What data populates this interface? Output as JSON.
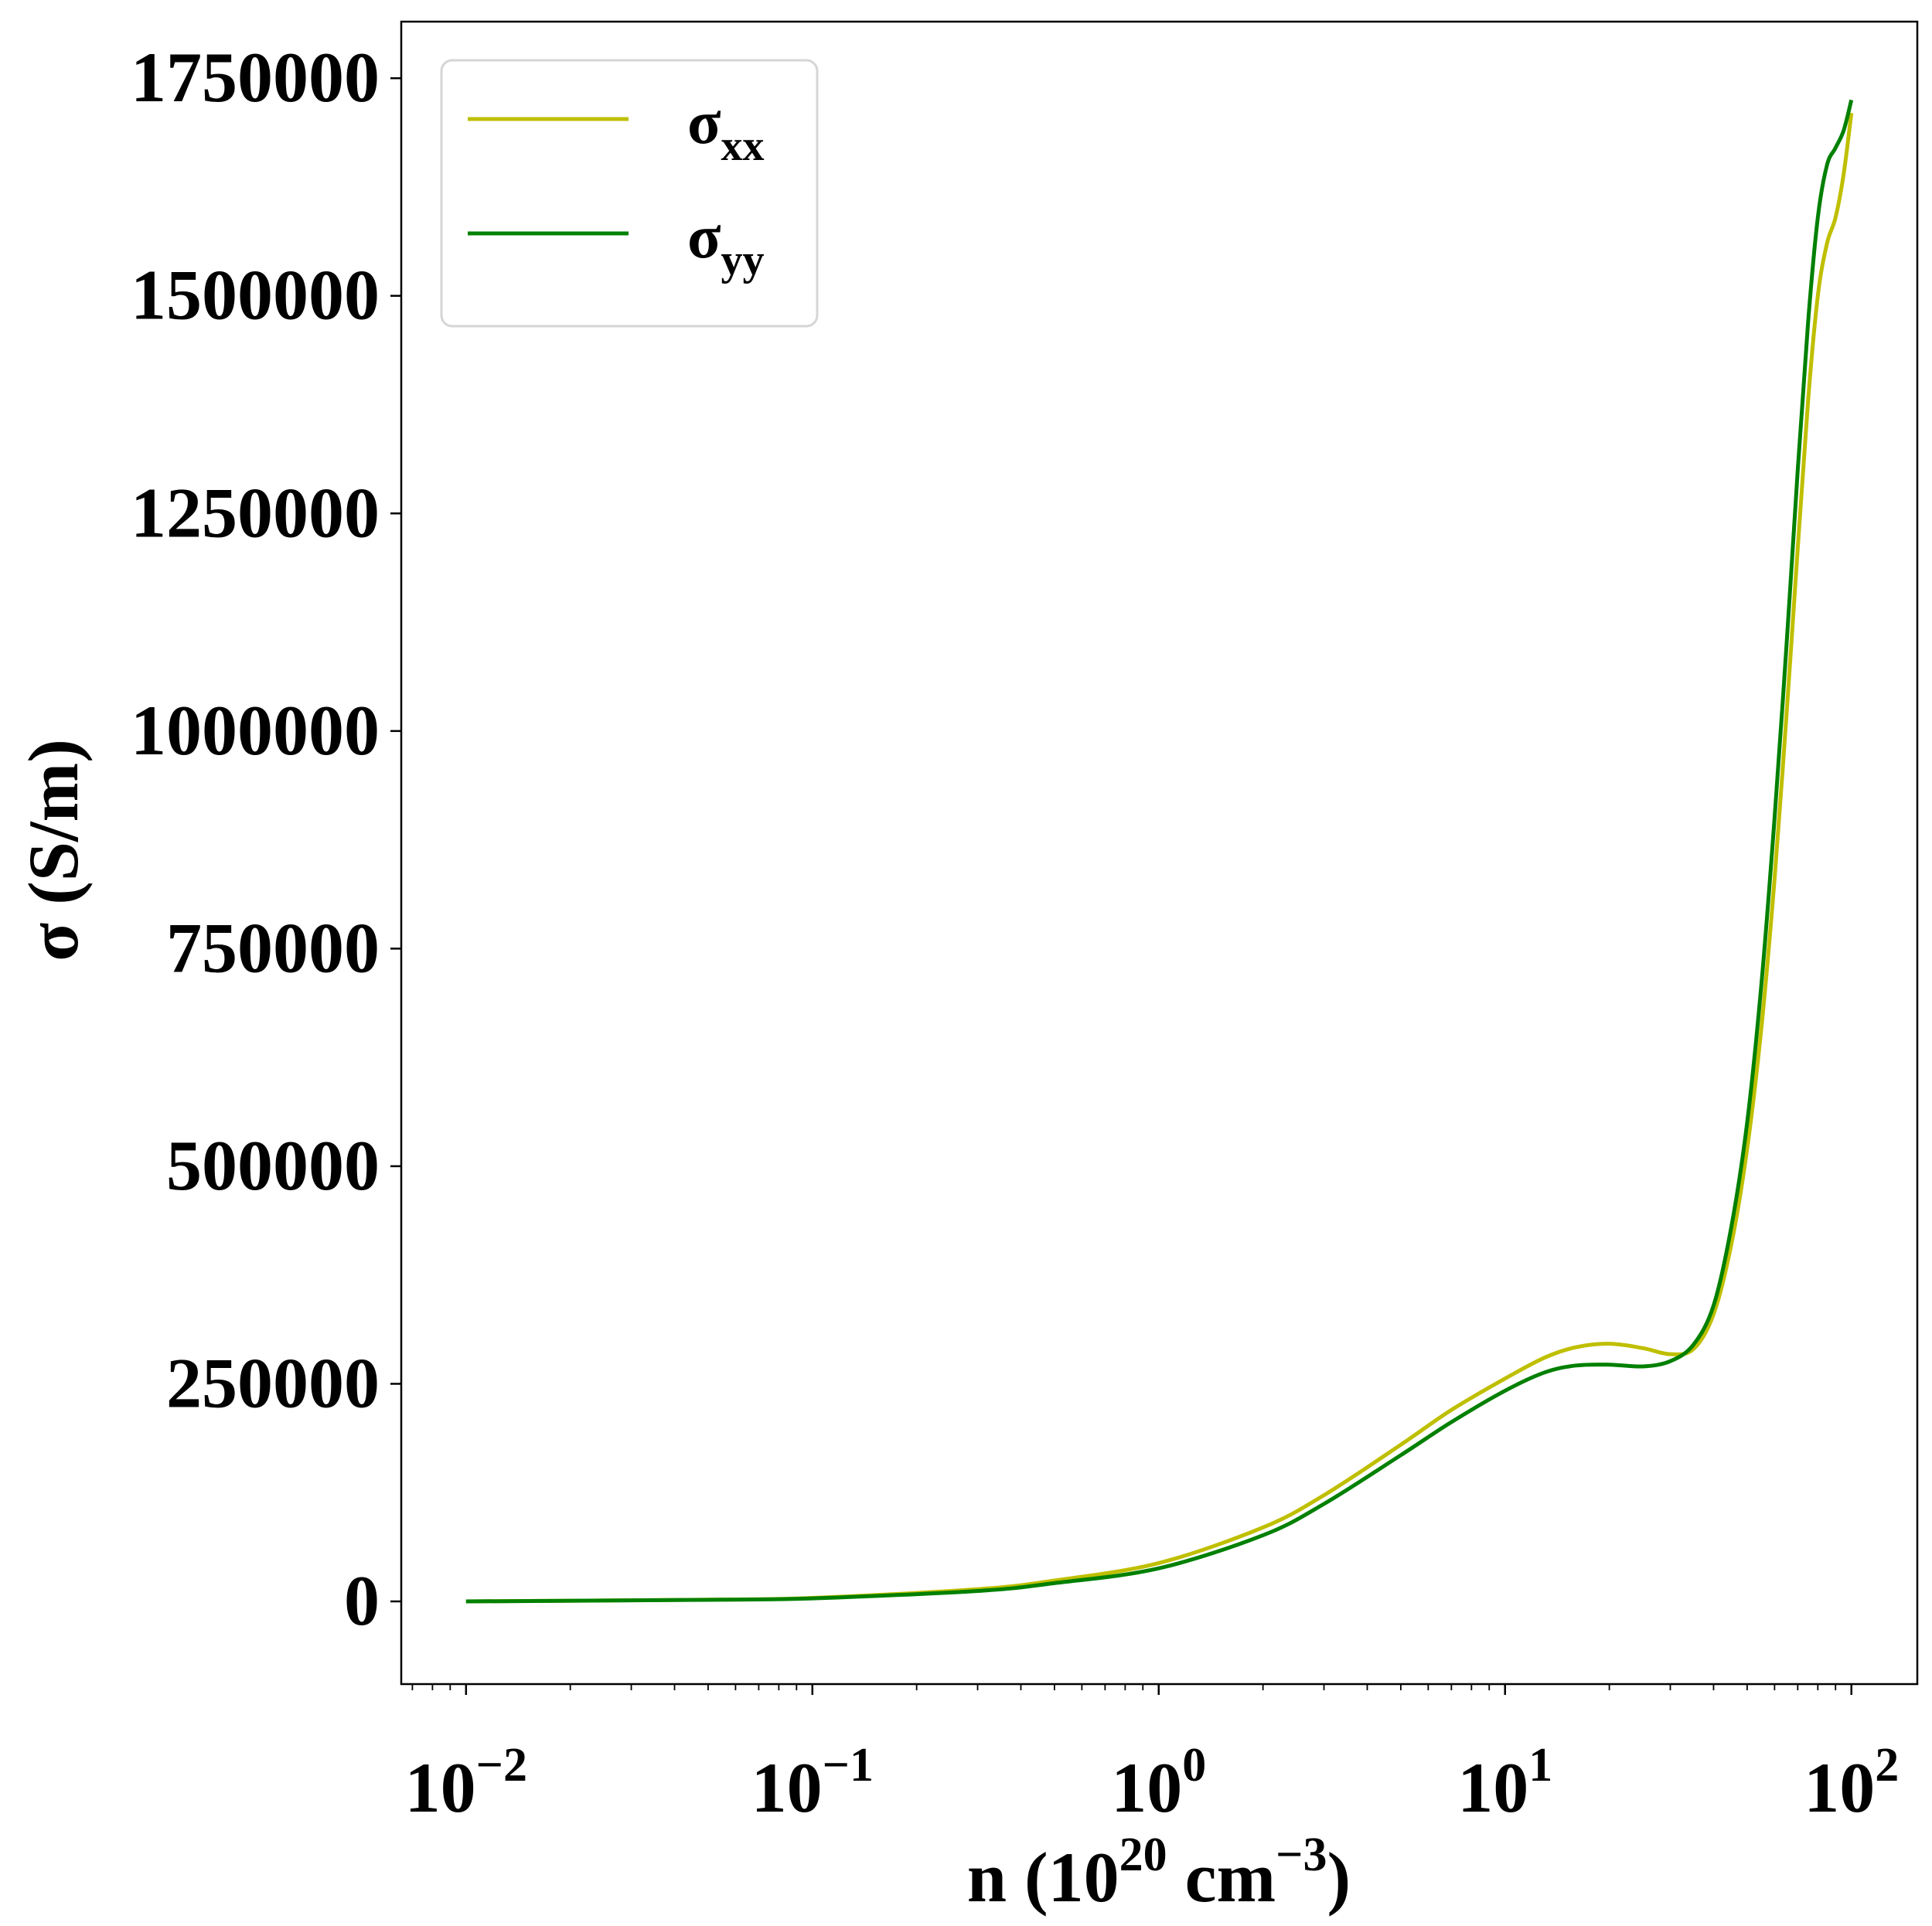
{
  "chart_data": {
    "type": "line",
    "xscale": "log",
    "xlim": [
      0.0065,
      155
    ],
    "ylim": [
      -95000,
      1815000
    ],
    "xlabel": {
      "base": "n (10",
      "sup1": "20",
      "mid": " cm",
      "sup2": "−3",
      "end": ")"
    },
    "ylabel": "σ (S/m)",
    "xticks": [
      {
        "value": 0.01,
        "base": "10",
        "exp": "−2"
      },
      {
        "value": 0.1,
        "base": "10",
        "exp": "−1"
      },
      {
        "value": 1,
        "base": "10",
        "exp": "0"
      },
      {
        "value": 10,
        "base": "10",
        "exp": "1"
      },
      {
        "value": 100,
        "base": "10",
        "exp": "2"
      }
    ],
    "yticks": [
      {
        "value": 0,
        "label": "0"
      },
      {
        "value": 250000,
        "label": "250000"
      },
      {
        "value": 500000,
        "label": "500000"
      },
      {
        "value": 750000,
        "label": "750000"
      },
      {
        "value": 1000000,
        "label": "1000000"
      },
      {
        "value": 1250000,
        "label": "1250000"
      },
      {
        "value": 1500000,
        "label": "1500000"
      },
      {
        "value": 1750000,
        "label": "1750000"
      }
    ],
    "grid": false,
    "legend": "upper-left",
    "series": [
      {
        "name": {
          "base": "σ",
          "sub": "xx"
        },
        "color": "#bfbf00",
        "points": [
          [
            0.01,
            0
          ],
          [
            0.05,
            2000
          ],
          [
            0.1,
            4000
          ],
          [
            0.3,
            14000
          ],
          [
            0.5,
            24000
          ],
          [
            1,
            44000
          ],
          [
            2,
            85000
          ],
          [
            3,
            122000
          ],
          [
            5,
            180000
          ],
          [
            7,
            220000
          ],
          [
            10,
            256000
          ],
          [
            13,
            280000
          ],
          [
            16,
            292000
          ],
          [
            20,
            296000
          ],
          [
            25,
            291000
          ],
          [
            30,
            284000
          ],
          [
            35,
            290000
          ],
          [
            40,
            330000
          ],
          [
            45,
            410000
          ],
          [
            50,
            520000
          ],
          [
            55,
            660000
          ],
          [
            60,
            830000
          ],
          [
            65,
            1020000
          ],
          [
            70,
            1210000
          ],
          [
            75,
            1380000
          ],
          [
            80,
            1500000
          ],
          [
            85,
            1560000
          ],
          [
            90,
            1590000
          ],
          [
            95,
            1640000
          ],
          [
            100,
            1710000
          ]
        ]
      },
      {
        "name": {
          "base": "σ",
          "sub": "yy"
        },
        "color": "#008000",
        "points": [
          [
            0.01,
            0
          ],
          [
            0.05,
            1800
          ],
          [
            0.1,
            3500
          ],
          [
            0.3,
            12000
          ],
          [
            0.5,
            21000
          ],
          [
            1,
            38000
          ],
          [
            2,
            76000
          ],
          [
            3,
            112000
          ],
          [
            5,
            168000
          ],
          [
            7,
            206000
          ],
          [
            10,
            242000
          ],
          [
            13,
            263000
          ],
          [
            16,
            271000
          ],
          [
            20,
            272000
          ],
          [
            25,
            270000
          ],
          [
            30,
            276000
          ],
          [
            35,
            295000
          ],
          [
            40,
            340000
          ],
          [
            45,
            430000
          ],
          [
            50,
            550000
          ],
          [
            55,
            710000
          ],
          [
            60,
            900000
          ],
          [
            65,
            1100000
          ],
          [
            70,
            1300000
          ],
          [
            75,
            1470000
          ],
          [
            80,
            1590000
          ],
          [
            85,
            1650000
          ],
          [
            90,
            1670000
          ],
          [
            95,
            1690000
          ],
          [
            100,
            1725000
          ]
        ]
      }
    ]
  }
}
